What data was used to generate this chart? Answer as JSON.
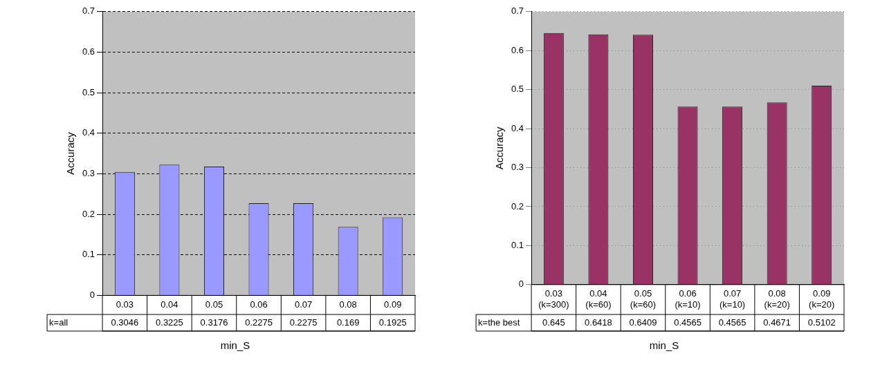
{
  "chart_data": [
    {
      "type": "bar",
      "xlabel": "min_S",
      "ylabel": "Accuracy",
      "categories": [
        "0.03",
        "0.04",
        "0.05",
        "0.06",
        "0.07",
        "0.08",
        "0.09"
      ],
      "series": [
        {
          "name": "k=all",
          "color": "#9999ff",
          "values": [
            0.3046,
            0.3225,
            0.3176,
            0.2275,
            0.2275,
            0.169,
            0.1925
          ]
        }
      ],
      "ylim": [
        0,
        0.7
      ],
      "yticks": [
        0,
        0.1,
        0.2,
        0.3,
        0.4,
        0.5,
        0.6,
        0.7
      ],
      "grid": "y",
      "legend": false,
      "data_labels": true
    },
    {
      "type": "bar",
      "xlabel": "min_S",
      "ylabel": "Accuracy",
      "categories": [
        "0.03\n(k=300)",
        "0.04\n(k=60)",
        "0.05\n(k=60)",
        "0.06\n(k=10)",
        "0.07\n(k=10)",
        "0.08\n(k=20)",
        "0.09\n(k=20)"
      ],
      "series": [
        {
          "name": "k=the best",
          "color": "#993366",
          "values": [
            0.645,
            0.6418,
            0.6409,
            0.4565,
            0.4565,
            0.4671,
            0.5102
          ]
        }
      ],
      "ylim": [
        0,
        0.7
      ],
      "yticks": [
        0,
        0.1,
        0.2,
        0.3,
        0.4,
        0.5,
        0.6,
        0.7
      ],
      "grid": "y",
      "legend": false,
      "data_labels": true
    }
  ]
}
